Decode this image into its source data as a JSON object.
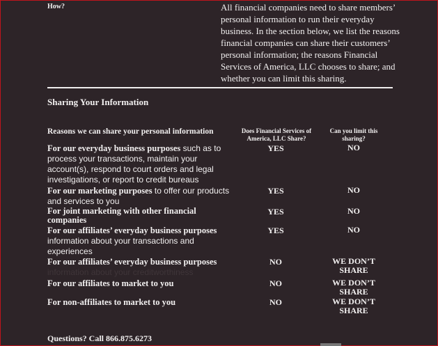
{
  "how": {
    "label": "How?",
    "description": "All financial companies need to share members’ personal information to run their everyday business. In the section below, we list the reasons financial companies can share their customers’ personal information; the reasons Financial Services of America, LLC chooses to share; and whether you can limit this sharing."
  },
  "section_title": "Sharing Your Information",
  "table": {
    "headers": [
      "Reasons we can share your personal information",
      "Does Financial Services of America, LLC Share?",
      "Can you limit this sharing?"
    ],
    "rows": [
      {
        "bold": "For our everyday business purposes",
        "rest": " such as to process your transactions, maintain your account(s), respond to court orders and legal investigations, or report to credit bureaus",
        "share": "YES",
        "limit": "NO"
      },
      {
        "bold": "For our marketing purposes",
        "rest": " to offer our products and services to you",
        "share": "YES",
        "limit": "NO"
      },
      {
        "bold": "For joint marketing with other financial companies",
        "rest": "",
        "share": "YES",
        "limit": "NO"
      },
      {
        "bold": "For our affiliates’ everyday business purposes",
        "rest": " information about your transactions and experiences",
        "share": "YES",
        "limit": "NO"
      },
      {
        "bold": "For our affiliates’ everyday business purposes",
        "rest": "information about your creditworthiness",
        "share": "NO",
        "limit": "WE DON’T SHARE"
      },
      {
        "bold": "For our affiliates to market to you",
        "rest": "",
        "share": "NO",
        "limit": "WE DON’T SHARE"
      },
      {
        "bold": "For non-affiliates to market to you",
        "rest": "",
        "share": "NO",
        "limit": "WE DON’T SHARE"
      }
    ]
  },
  "questions": "Questions? Call 866.875.6273",
  "colors": {
    "background": "#2d2428",
    "text": "#f2f0f0",
    "border": "#c0141c"
  }
}
